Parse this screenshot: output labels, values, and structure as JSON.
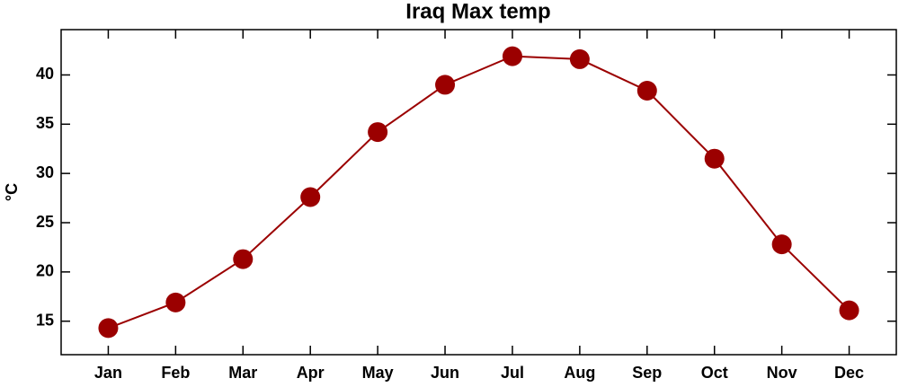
{
  "chart_data": {
    "type": "line",
    "title": "Iraq Max temp",
    "y_label": "°C",
    "categories": [
      "Jan",
      "Feb",
      "Mar",
      "Apr",
      "May",
      "Jun",
      "Jul",
      "Aug",
      "Sep",
      "Oct",
      "Nov",
      "Dec"
    ],
    "series": [
      {
        "name": "Max temp",
        "color": "#9b0000",
        "values": [
          14.3,
          16.9,
          21.3,
          27.6,
          34.2,
          39.0,
          41.9,
          41.6,
          38.4,
          31.5,
          22.8,
          16.1
        ]
      }
    ],
    "ylim": [
      11.6,
      44.6
    ],
    "yticks": [
      15,
      20,
      25,
      30,
      35,
      40
    ],
    "grid": false
  }
}
